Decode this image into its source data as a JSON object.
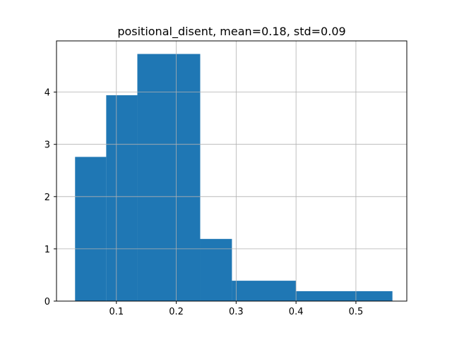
{
  "chart_data": {
    "type": "histogram",
    "title": "positional_disent, mean=0.18, std=0.09",
    "xlabel": "",
    "ylabel": "",
    "xlim": [
      0.0,
      0.585
    ],
    "ylim": [
      0,
      4.98
    ],
    "grid": true,
    "bar_color": "#1f77b4",
    "x_ticks": [
      0.1,
      0.2,
      0.3,
      0.4,
      0.5
    ],
    "y_ticks": [
      0,
      1,
      2,
      3,
      4
    ],
    "x_tick_labels": [
      "0.1",
      "0.2",
      "0.3",
      "0.4",
      "0.5"
    ],
    "y_tick_labels": [
      "0",
      "1",
      "2",
      "3",
      "4"
    ],
    "bins": [
      {
        "x0": 0.031,
        "x1": 0.083,
        "density": 2.76
      },
      {
        "x0": 0.083,
        "x1": 0.135,
        "density": 3.94
      },
      {
        "x0": 0.135,
        "x1": 0.24,
        "density": 4.73
      },
      {
        "x0": 0.24,
        "x1": 0.293,
        "density": 1.19
      },
      {
        "x0": 0.293,
        "x1": 0.4,
        "density": 0.39
      },
      {
        "x0": 0.4,
        "x1": 0.561,
        "density": 0.19
      }
    ]
  }
}
